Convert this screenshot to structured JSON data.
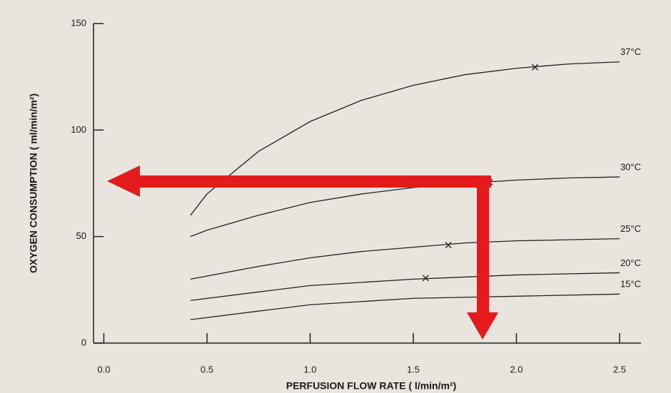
{
  "chart_data": {
    "type": "line",
    "xlabel": "PERFUSION FLOW RATE ( l/min/m²)",
    "ylabel": "OXYGEN CONSUMPTION ( ml/min/m²)",
    "xlim": [
      -0.05,
      2.5
    ],
    "ylim": [
      0,
      150
    ],
    "xticks": [
      {
        "value": 0,
        "label": "0.0"
      },
      0.5,
      {
        "value": 1,
        "label": "1.0"
      },
      1.5,
      {
        "value": 2,
        "label": "2.0"
      },
      2.5
    ],
    "yticks": [
      0,
      50,
      100,
      150
    ],
    "color": "#222222",
    "series": [
      {
        "name": "37°C",
        "x": [
          0.42,
          0.5,
          0.75,
          1.0,
          1.25,
          1.5,
          1.75,
          2.0,
          2.25,
          2.5
        ],
        "values": [
          60,
          70,
          90,
          104,
          114,
          121,
          126,
          129,
          131,
          132
        ],
        "marker": {
          "x": 2.09,
          "y": 129.5
        }
      },
      {
        "name": "30°C",
        "x": [
          0.42,
          0.5,
          0.75,
          1.0,
          1.25,
          1.5,
          1.75,
          2.0,
          2.25,
          2.5
        ],
        "values": [
          50,
          53,
          60,
          66,
          70,
          73,
          75,
          76.5,
          77.5,
          78
        ],
        "marker": {
          "x": 1.87,
          "y": 75.5
        }
      },
      {
        "name": "25°C",
        "x": [
          0.42,
          0.75,
          1.0,
          1.25,
          1.5,
          1.75,
          2.0,
          2.5
        ],
        "values": [
          30,
          36,
          40,
          43,
          45,
          47,
          48,
          49
        ],
        "marker": {
          "x": 1.67,
          "y": 46
        }
      },
      {
        "name": "20°C",
        "x": [
          0.42,
          0.75,
          1.0,
          1.5,
          2.0,
          2.5
        ],
        "values": [
          20,
          24,
          27,
          30,
          32,
          33
        ],
        "marker": {
          "x": 1.56,
          "y": 30.5
        }
      },
      {
        "name": "15°C",
        "x": [
          0.42,
          0.75,
          1.0,
          1.5,
          2.0,
          2.5
        ],
        "values": [
          11,
          15,
          18,
          21,
          22,
          23
        ]
      }
    ]
  }
}
